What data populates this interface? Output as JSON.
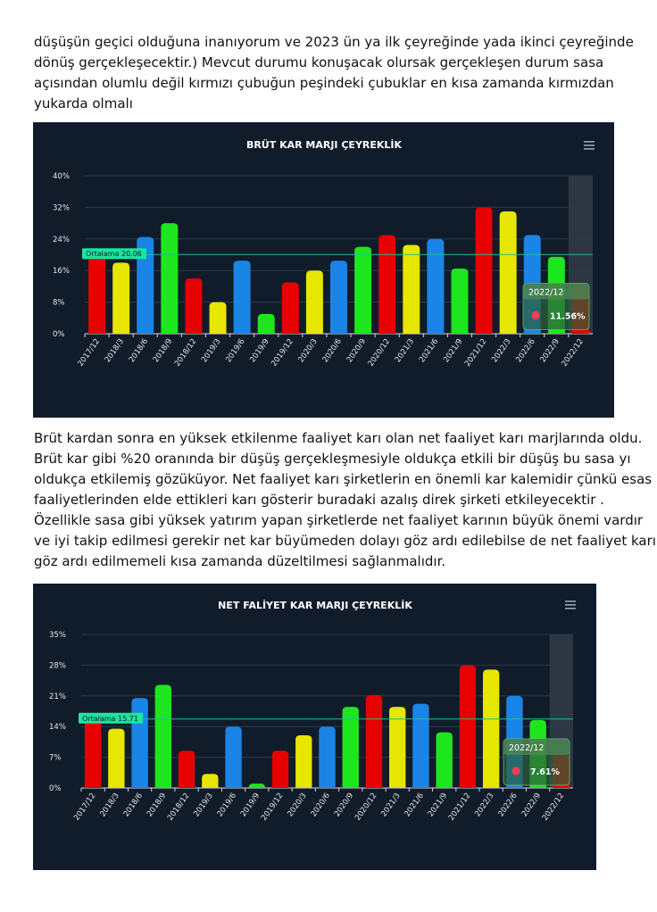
{
  "paragraph_1": {
    "lines": [
      "düşüşün geçici olduğuna inanıyorum ve  2023 ün ya ilk çeyreğinde yada ikinci çeyreğinde",
      "dönüş gerçekleşecektir.) Mevcut durumu konuşacak olursak gerçekleşen durum sasa",
      "açısından olumlu değil kırmızı çubuğun peşindeki çubuklar en kısa zamanda kırmızdan",
      "yukarda olmalı"
    ]
  },
  "paragraph_2": {
    "lines": [
      "Brüt kardan sonra en yüksek etkilenme faaliyet karı olan net faaliyet karı marjlarında oldu.",
      "Brüt kar gibi %20 oranında bir düşüş gerçekleşmesiyle oldukça etkili bir düşüş bu sasa yı",
      "oldukça etkilemiş gözüküyor. Net faaliyet karı şirketlerin en önemli kar kalemidir çünkü esas",
      "faaliyetlerinden elde ettikleri karı gösterir buradaki azalış direk şirketi etkileyecektir .",
      "Özellikle sasa gibi yüksek yatırım yapan şirketlerde net faaliyet karının büyük önemi vardır",
      "ve iyi takip edilmesi gerekir net kar büyümeden dolayı göz ardı edilebilse de net faaliyet karı",
      "göz ardı edilmemeli kısa zamanda düzeltilmesi sağlanmalıdır."
    ]
  },
  "chart_data": [
    {
      "type": "bar",
      "title": "BRÜT KAR MARJI ÇEYREKLİK",
      "categories": [
        "2017/12",
        "2018/3",
        "2018/6",
        "2018/9",
        "2018/12",
        "2019/3",
        "2019/6",
        "2019/9",
        "2019/12",
        "2020/3",
        "2020/6",
        "2020/9",
        "2020/12",
        "2021/3",
        "2021/6",
        "2021/9",
        "2021/12",
        "2022/3",
        "2022/6",
        "2022/9",
        "2022/12"
      ],
      "values": [
        21.5,
        18,
        24.5,
        28,
        14,
        8,
        18.5,
        5,
        13,
        16,
        18.5,
        22,
        25,
        22.5,
        24,
        16.5,
        32,
        31,
        25,
        19.5,
        11.56
      ],
      "bar_colors": [
        "#e60000",
        "#e6e600",
        "#1a85e6",
        "#1ee61e",
        "#e60000",
        "#e6e600",
        "#1a85e6",
        "#1ee61e",
        "#e60000",
        "#e6e600",
        "#1a85e6",
        "#1ee61e",
        "#e60000",
        "#e6e600",
        "#1a85e6",
        "#1ee61e",
        "#e60000",
        "#e6e600",
        "#1a85e6",
        "#1ee61e",
        "#e60000"
      ],
      "y_ticks": [
        "0%",
        "8%",
        "16%",
        "24%",
        "32%",
        "40%"
      ],
      "ylim": [
        0,
        40
      ],
      "average": {
        "label": "Ortalama 20.06",
        "value": 20.06
      },
      "tooltip": {
        "period": "2022/12",
        "value": "11.56%"
      },
      "colors": {
        "background": "#111c2b",
        "grid": "#2a3a4c",
        "average_line": "#1fbf8f",
        "label_bg": "#19e6a0",
        "tooltip_marker": "#ff3b57",
        "menu_icon": "#9aa4b0"
      }
    },
    {
      "type": "bar",
      "title": "NET FALİYET KAR MARJI ÇEYREKLİK",
      "categories": [
        "2017/12",
        "2018/3",
        "2018/6",
        "2018/9",
        "2018/12",
        "2019/3",
        "2019/6",
        "2019/9",
        "2019/12",
        "2020/3",
        "2020/6",
        "2020/9",
        "2020/12",
        "2021/3",
        "2021/6",
        "2021/9",
        "2021/12",
        "2022/3",
        "2022/6",
        "2022/9",
        "2022/12"
      ],
      "values": [
        16.5,
        13.5,
        20.5,
        23.5,
        8.5,
        3.2,
        14,
        1,
        8.5,
        12,
        14,
        18.5,
        21.2,
        18.5,
        19.2,
        12.7,
        28,
        27,
        21,
        15.5,
        7.61
      ],
      "bar_colors": [
        "#e60000",
        "#e6e600",
        "#1a85e6",
        "#1ee61e",
        "#e60000",
        "#e6e600",
        "#1a85e6",
        "#1ee61e",
        "#e60000",
        "#e6e600",
        "#1a85e6",
        "#1ee61e",
        "#e60000",
        "#e6e600",
        "#1a85e6",
        "#1ee61e",
        "#e60000",
        "#e6e600",
        "#1a85e6",
        "#1ee61e",
        "#e60000"
      ],
      "y_ticks": [
        "0%",
        "7%",
        "14%",
        "21%",
        "28%",
        "35%"
      ],
      "ylim": [
        0,
        35
      ],
      "average": {
        "label": "Ortalama 15.71",
        "value": 15.71
      },
      "tooltip": {
        "period": "2022/12",
        "value": "7.61%"
      },
      "colors": {
        "background": "#111c2b",
        "grid": "#2a3a4c",
        "average_line": "#1fbf8f",
        "label_bg": "#19e6a0",
        "tooltip_marker": "#ff3b57",
        "menu_icon": "#9aa4b0"
      }
    }
  ]
}
